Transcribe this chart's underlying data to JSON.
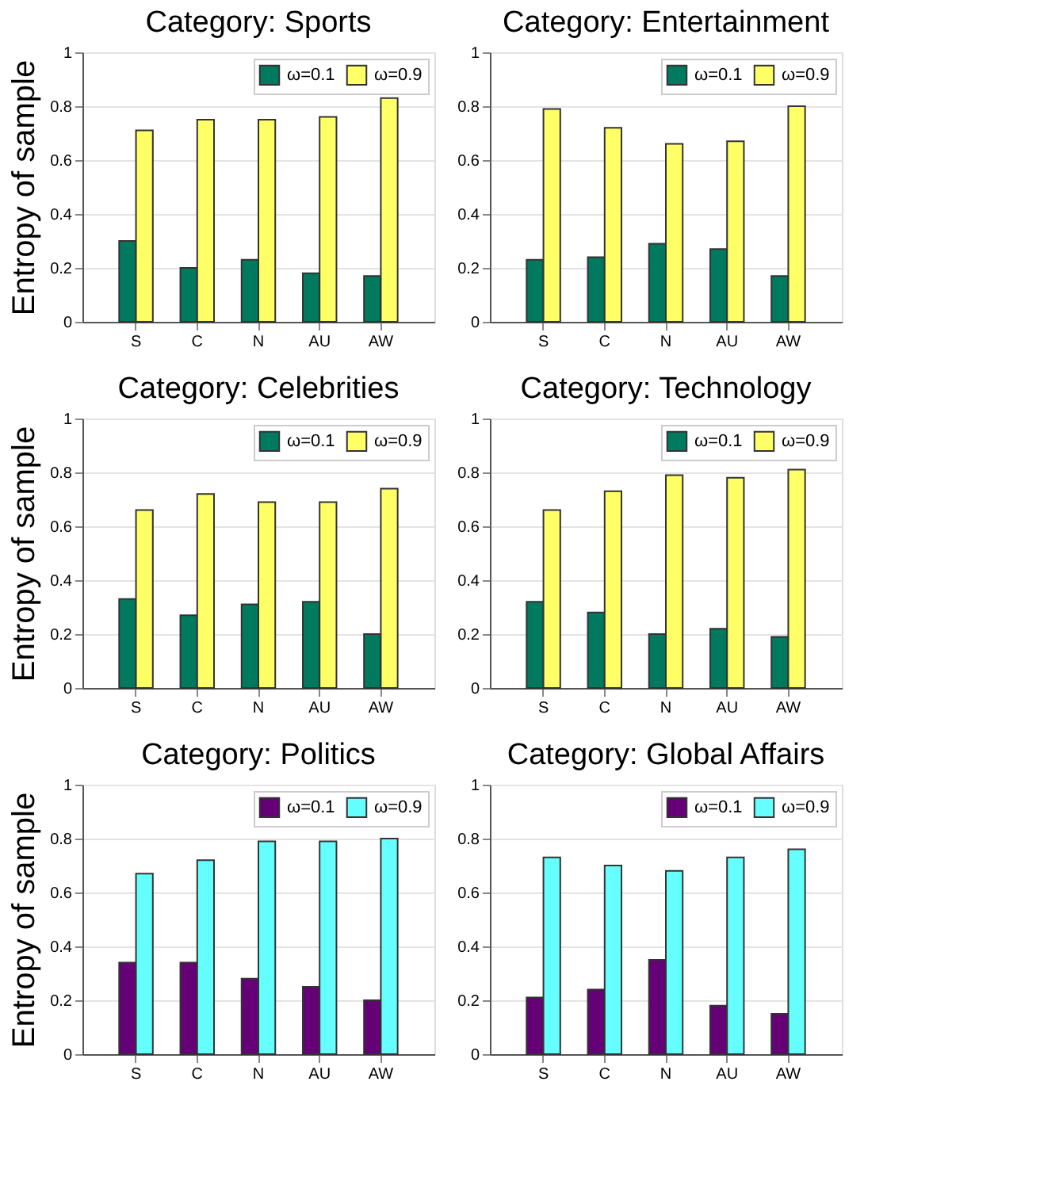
{
  "chart_data": [
    {
      "type": "bar",
      "title": "Category: Sports",
      "ylabel": "Entropy of sample",
      "categories": [
        "S",
        "C",
        "N",
        "AU",
        "AW"
      ],
      "ylim": [
        0,
        1
      ],
      "yticks": [
        0,
        0.2,
        0.4,
        0.6,
        0.8,
        1
      ],
      "grid": "y",
      "legend": "top right",
      "series": [
        {
          "name": "ω=0.1",
          "color": "#007a5e",
          "values": [
            0.3,
            0.2,
            0.23,
            0.18,
            0.17
          ]
        },
        {
          "name": "ω=0.9",
          "color": "#ffff66",
          "values": [
            0.71,
            0.75,
            0.75,
            0.76,
            0.83
          ]
        }
      ]
    },
    {
      "type": "bar",
      "title": "Category: Entertainment",
      "categories": [
        "S",
        "C",
        "N",
        "AU",
        "AW"
      ],
      "ylim": [
        0,
        1
      ],
      "yticks": [
        0,
        0.2,
        0.4,
        0.6,
        0.8,
        1
      ],
      "grid": "y",
      "legend": "top right",
      "series": [
        {
          "name": "ω=0.1",
          "color": "#007a5e",
          "values": [
            0.23,
            0.24,
            0.29,
            0.27,
            0.17
          ]
        },
        {
          "name": "ω=0.9",
          "color": "#ffff66",
          "values": [
            0.79,
            0.72,
            0.66,
            0.67,
            0.8
          ]
        }
      ]
    },
    {
      "type": "bar",
      "title": "Category: Celebrities",
      "ylabel": "Entropy of sample",
      "categories": [
        "S",
        "C",
        "N",
        "AU",
        "AW"
      ],
      "ylim": [
        0,
        1
      ],
      "yticks": [
        0,
        0.2,
        0.4,
        0.6,
        0.8,
        1
      ],
      "grid": "y",
      "legend": "top right",
      "series": [
        {
          "name": "ω=0.1",
          "color": "#007a5e",
          "values": [
            0.33,
            0.27,
            0.31,
            0.32,
            0.2
          ]
        },
        {
          "name": "ω=0.9",
          "color": "#ffff66",
          "values": [
            0.66,
            0.72,
            0.69,
            0.69,
            0.74
          ]
        }
      ]
    },
    {
      "type": "bar",
      "title": "Category: Technology",
      "categories": [
        "S",
        "C",
        "N",
        "AU",
        "AW"
      ],
      "ylim": [
        0,
        1
      ],
      "yticks": [
        0,
        0.2,
        0.4,
        0.6,
        0.8,
        1
      ],
      "grid": "y",
      "legend": "top right",
      "series": [
        {
          "name": "ω=0.1",
          "color": "#007a5e",
          "values": [
            0.32,
            0.28,
            0.2,
            0.22,
            0.19
          ]
        },
        {
          "name": "ω=0.9",
          "color": "#ffff66",
          "values": [
            0.66,
            0.73,
            0.79,
            0.78,
            0.81
          ]
        }
      ]
    },
    {
      "type": "bar",
      "title": "Category: Politics",
      "ylabel": "Entropy of sample",
      "categories": [
        "S",
        "C",
        "N",
        "AU",
        "AW"
      ],
      "ylim": [
        0,
        1
      ],
      "yticks": [
        0,
        0.2,
        0.4,
        0.6,
        0.8,
        1
      ],
      "grid": "y",
      "legend": "top right",
      "series": [
        {
          "name": "ω=0.1",
          "color": "#660077",
          "values": [
            0.34,
            0.34,
            0.28,
            0.25,
            0.2
          ]
        },
        {
          "name": "ω=0.9",
          "color": "#66ffff",
          "values": [
            0.67,
            0.72,
            0.79,
            0.79,
            0.8
          ]
        }
      ]
    },
    {
      "type": "bar",
      "title": "Category: Global Affairs",
      "categories": [
        "S",
        "C",
        "N",
        "AU",
        "AW"
      ],
      "ylim": [
        0,
        1
      ],
      "yticks": [
        0,
        0.2,
        0.4,
        0.6,
        0.8,
        1
      ],
      "grid": "y",
      "legend": "top right",
      "series": [
        {
          "name": "ω=0.1",
          "color": "#660077",
          "values": [
            0.21,
            0.24,
            0.35,
            0.18,
            0.15
          ]
        },
        {
          "name": "ω=0.9",
          "color": "#66ffff",
          "values": [
            0.73,
            0.7,
            0.68,
            0.73,
            0.76
          ]
        }
      ]
    }
  ]
}
